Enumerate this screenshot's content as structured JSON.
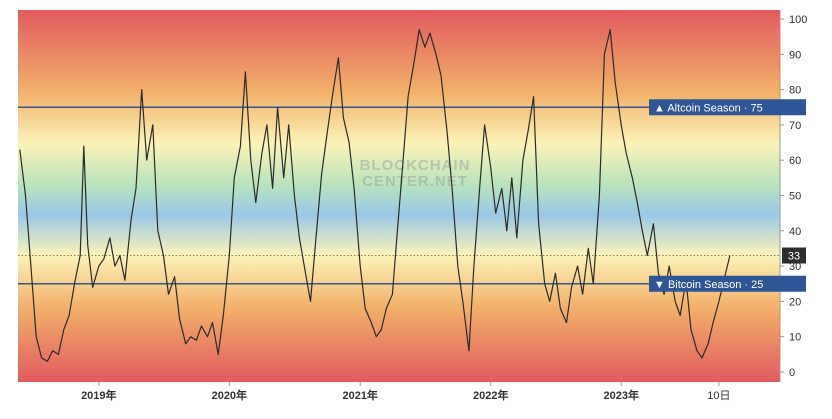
{
  "watermark": {
    "line1": "BLOCKCHAIN",
    "line2": "CENTER.NET"
  },
  "colors": {
    "top_red": "#e15a5f",
    "orange": "#f2b06a",
    "yellow": "#fbf3b8",
    "green": "#b9e3bd",
    "blue": "#9ac8e6",
    "line": "#2b2b2b",
    "level_line": "#34588f",
    "level_label_bg": "#2f5597",
    "current_label_bg": "#2e2e2e"
  },
  "chart_data": {
    "type": "line",
    "title": "",
    "xlabel": "",
    "ylabel": "",
    "ylim": [
      0,
      100
    ],
    "y_ticks": [
      "0",
      "10",
      "20",
      "25",
      "30",
      "40",
      "50",
      "60",
      "70",
      "75",
      "80",
      "90",
      "100"
    ],
    "x_ticks": [
      {
        "label": "2019年",
        "date": "2019-01-01",
        "bold": true
      },
      {
        "label": "2020年",
        "date": "2020-01-01",
        "bold": true
      },
      {
        "label": "2021年",
        "date": "2021-01-01",
        "bold": true
      },
      {
        "label": "2022年",
        "date": "2022-01-01",
        "bold": true
      },
      {
        "label": "2023年",
        "date": "2023-01-01",
        "bold": true
      },
      {
        "label": "10日",
        "date": "2023-10-01",
        "bold": false
      }
    ],
    "x_range": [
      "2018-05-20",
      "2024-03-20"
    ],
    "levels": [
      {
        "name": "Altcoin Season",
        "value": 75,
        "marker": "▲"
      },
      {
        "name": "Bitcoin Season",
        "value": 25,
        "marker": "▼"
      }
    ],
    "current_value": 33,
    "series": [
      {
        "name": "",
        "points": [
          [
            "2018-05-25",
            63
          ],
          [
            "2018-06-10",
            50
          ],
          [
            "2018-06-25",
            30
          ],
          [
            "2018-07-10",
            10
          ],
          [
            "2018-07-25",
            4
          ],
          [
            "2018-08-10",
            3
          ],
          [
            "2018-08-25",
            6
          ],
          [
            "2018-09-10",
            5
          ],
          [
            "2018-09-25",
            12
          ],
          [
            "2018-10-10",
            16
          ],
          [
            "2018-10-25",
            25
          ],
          [
            "2018-11-10",
            33
          ],
          [
            "2018-11-20",
            64
          ],
          [
            "2018-12-01",
            36
          ],
          [
            "2018-12-15",
            24
          ],
          [
            "2019-01-01",
            30
          ],
          [
            "2019-01-15",
            32
          ],
          [
            "2019-02-01",
            38
          ],
          [
            "2019-02-15",
            30
          ],
          [
            "2019-03-01",
            33
          ],
          [
            "2019-03-15",
            26
          ],
          [
            "2019-04-01",
            43
          ],
          [
            "2019-04-15",
            52
          ],
          [
            "2019-05-01",
            80
          ],
          [
            "2019-05-15",
            60
          ],
          [
            "2019-06-01",
            70
          ],
          [
            "2019-06-15",
            40
          ],
          [
            "2019-07-01",
            33
          ],
          [
            "2019-07-15",
            22
          ],
          [
            "2019-08-01",
            27
          ],
          [
            "2019-08-15",
            15
          ],
          [
            "2019-09-01",
            8
          ],
          [
            "2019-09-15",
            10
          ],
          [
            "2019-10-01",
            9
          ],
          [
            "2019-10-15",
            13
          ],
          [
            "2019-11-01",
            10
          ],
          [
            "2019-11-15",
            14
          ],
          [
            "2019-12-01",
            5
          ],
          [
            "2019-12-15",
            16
          ],
          [
            "2020-01-01",
            33
          ],
          [
            "2020-01-15",
            55
          ],
          [
            "2020-02-01",
            64
          ],
          [
            "2020-02-15",
            85
          ],
          [
            "2020-03-01",
            60
          ],
          [
            "2020-03-15",
            48
          ],
          [
            "2020-04-01",
            62
          ],
          [
            "2020-04-15",
            70
          ],
          [
            "2020-05-01",
            52
          ],
          [
            "2020-05-15",
            75
          ],
          [
            "2020-06-01",
            55
          ],
          [
            "2020-06-15",
            70
          ],
          [
            "2020-07-01",
            50
          ],
          [
            "2020-07-15",
            38
          ],
          [
            "2020-08-01",
            28
          ],
          [
            "2020-08-15",
            20
          ],
          [
            "2020-09-01",
            40
          ],
          [
            "2020-09-15",
            56
          ],
          [
            "2020-10-01",
            68
          ],
          [
            "2020-10-15",
            78
          ],
          [
            "2020-11-01",
            89
          ],
          [
            "2020-11-15",
            72
          ],
          [
            "2020-12-01",
            65
          ],
          [
            "2020-12-15",
            52
          ],
          [
            "2021-01-01",
            30
          ],
          [
            "2021-01-15",
            18
          ],
          [
            "2021-02-01",
            14
          ],
          [
            "2021-02-15",
            10
          ],
          [
            "2021-03-01",
            12
          ],
          [
            "2021-03-15",
            18
          ],
          [
            "2021-04-01",
            22
          ],
          [
            "2021-04-15",
            40
          ],
          [
            "2021-05-01",
            60
          ],
          [
            "2021-05-15",
            78
          ],
          [
            "2021-06-01",
            88
          ],
          [
            "2021-06-15",
            97
          ],
          [
            "2021-07-01",
            92
          ],
          [
            "2021-07-15",
            96
          ],
          [
            "2021-08-01",
            90
          ],
          [
            "2021-08-15",
            84
          ],
          [
            "2021-09-01",
            68
          ],
          [
            "2021-09-15",
            52
          ],
          [
            "2021-10-01",
            30
          ],
          [
            "2021-10-15",
            20
          ],
          [
            "2021-11-01",
            6
          ],
          [
            "2021-11-15",
            30
          ],
          [
            "2021-12-01",
            52
          ],
          [
            "2021-12-15",
            70
          ],
          [
            "2022-01-01",
            58
          ],
          [
            "2022-01-15",
            45
          ],
          [
            "2022-02-01",
            52
          ],
          [
            "2022-02-15",
            40
          ],
          [
            "2022-03-01",
            55
          ],
          [
            "2022-03-15",
            38
          ],
          [
            "2022-04-01",
            60
          ],
          [
            "2022-04-15",
            68
          ],
          [
            "2022-05-01",
            78
          ],
          [
            "2022-05-15",
            42
          ],
          [
            "2022-06-01",
            25
          ],
          [
            "2022-06-15",
            20
          ],
          [
            "2022-07-01",
            28
          ],
          [
            "2022-07-15",
            18
          ],
          [
            "2022-08-01",
            14
          ],
          [
            "2022-08-15",
            24
          ],
          [
            "2022-09-01",
            30
          ],
          [
            "2022-09-15",
            22
          ],
          [
            "2022-10-01",
            35
          ],
          [
            "2022-10-15",
            25
          ],
          [
            "2022-11-01",
            50
          ],
          [
            "2022-11-15",
            90
          ],
          [
            "2022-12-01",
            97
          ],
          [
            "2022-12-15",
            82
          ],
          [
            "2023-01-01",
            70
          ],
          [
            "2023-01-15",
            62
          ],
          [
            "2023-02-01",
            55
          ],
          [
            "2023-02-15",
            48
          ],
          [
            "2023-03-01",
            40
          ],
          [
            "2023-03-15",
            33
          ],
          [
            "2023-04-01",
            42
          ],
          [
            "2023-04-15",
            28
          ],
          [
            "2023-05-01",
            22
          ],
          [
            "2023-05-15",
            30
          ],
          [
            "2023-06-01",
            20
          ],
          [
            "2023-06-15",
            16
          ],
          [
            "2023-07-01",
            26
          ],
          [
            "2023-07-15",
            12
          ],
          [
            "2023-08-01",
            6
          ],
          [
            "2023-08-15",
            4
          ],
          [
            "2023-09-01",
            8
          ],
          [
            "2023-09-15",
            14
          ],
          [
            "2023-10-01",
            20
          ],
          [
            "2023-10-15",
            26
          ],
          [
            "2023-11-01",
            33
          ]
        ]
      }
    ]
  }
}
